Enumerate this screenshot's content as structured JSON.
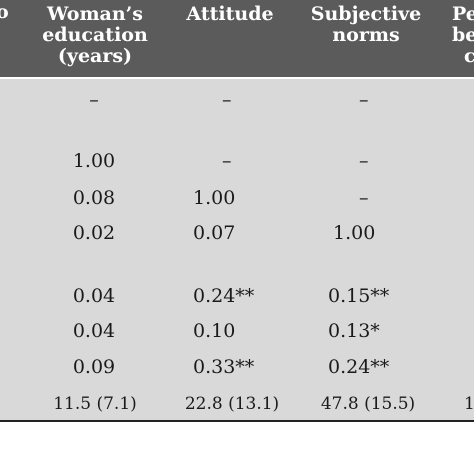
{
  "headers": {
    "col0_fragment": "o",
    "col1": [
      "Woman’s",
      "education",
      "(years)"
    ],
    "col2": [
      "Attitude"
    ],
    "col3": [
      "Subjective",
      "norms"
    ],
    "col4_fragment": [
      "Pe",
      "be",
      "c"
    ]
  },
  "rows": [
    {
      "c1": "–",
      "c2": "–",
      "c3": "–",
      "c4": ""
    },
    {
      "c1": "1.00",
      "c2": "–",
      "c3": "–",
      "c4": ""
    },
    {
      "c1": "0.08",
      "c2": "1.00",
      "c3": "–",
      "c4": ""
    },
    {
      "c1": "0.02",
      "c2": "0.07",
      "c3": "1.00",
      "c4": ""
    },
    {
      "c1": "0.04",
      "c2": "0.24**",
      "c3": "0.15**",
      "c4": ""
    },
    {
      "c1": "0.04",
      "c2": "0.10",
      "c3": "0.13*",
      "c4": ""
    },
    {
      "c1": "0.09",
      "c2": "0.33**",
      "c3": "0.24**",
      "c4": ""
    },
    {
      "c1": "11.5 (7.1)",
      "c2": "22.8 (13.1)",
      "c3": "47.8 (15.5)",
      "c4": "1"
    }
  ]
}
